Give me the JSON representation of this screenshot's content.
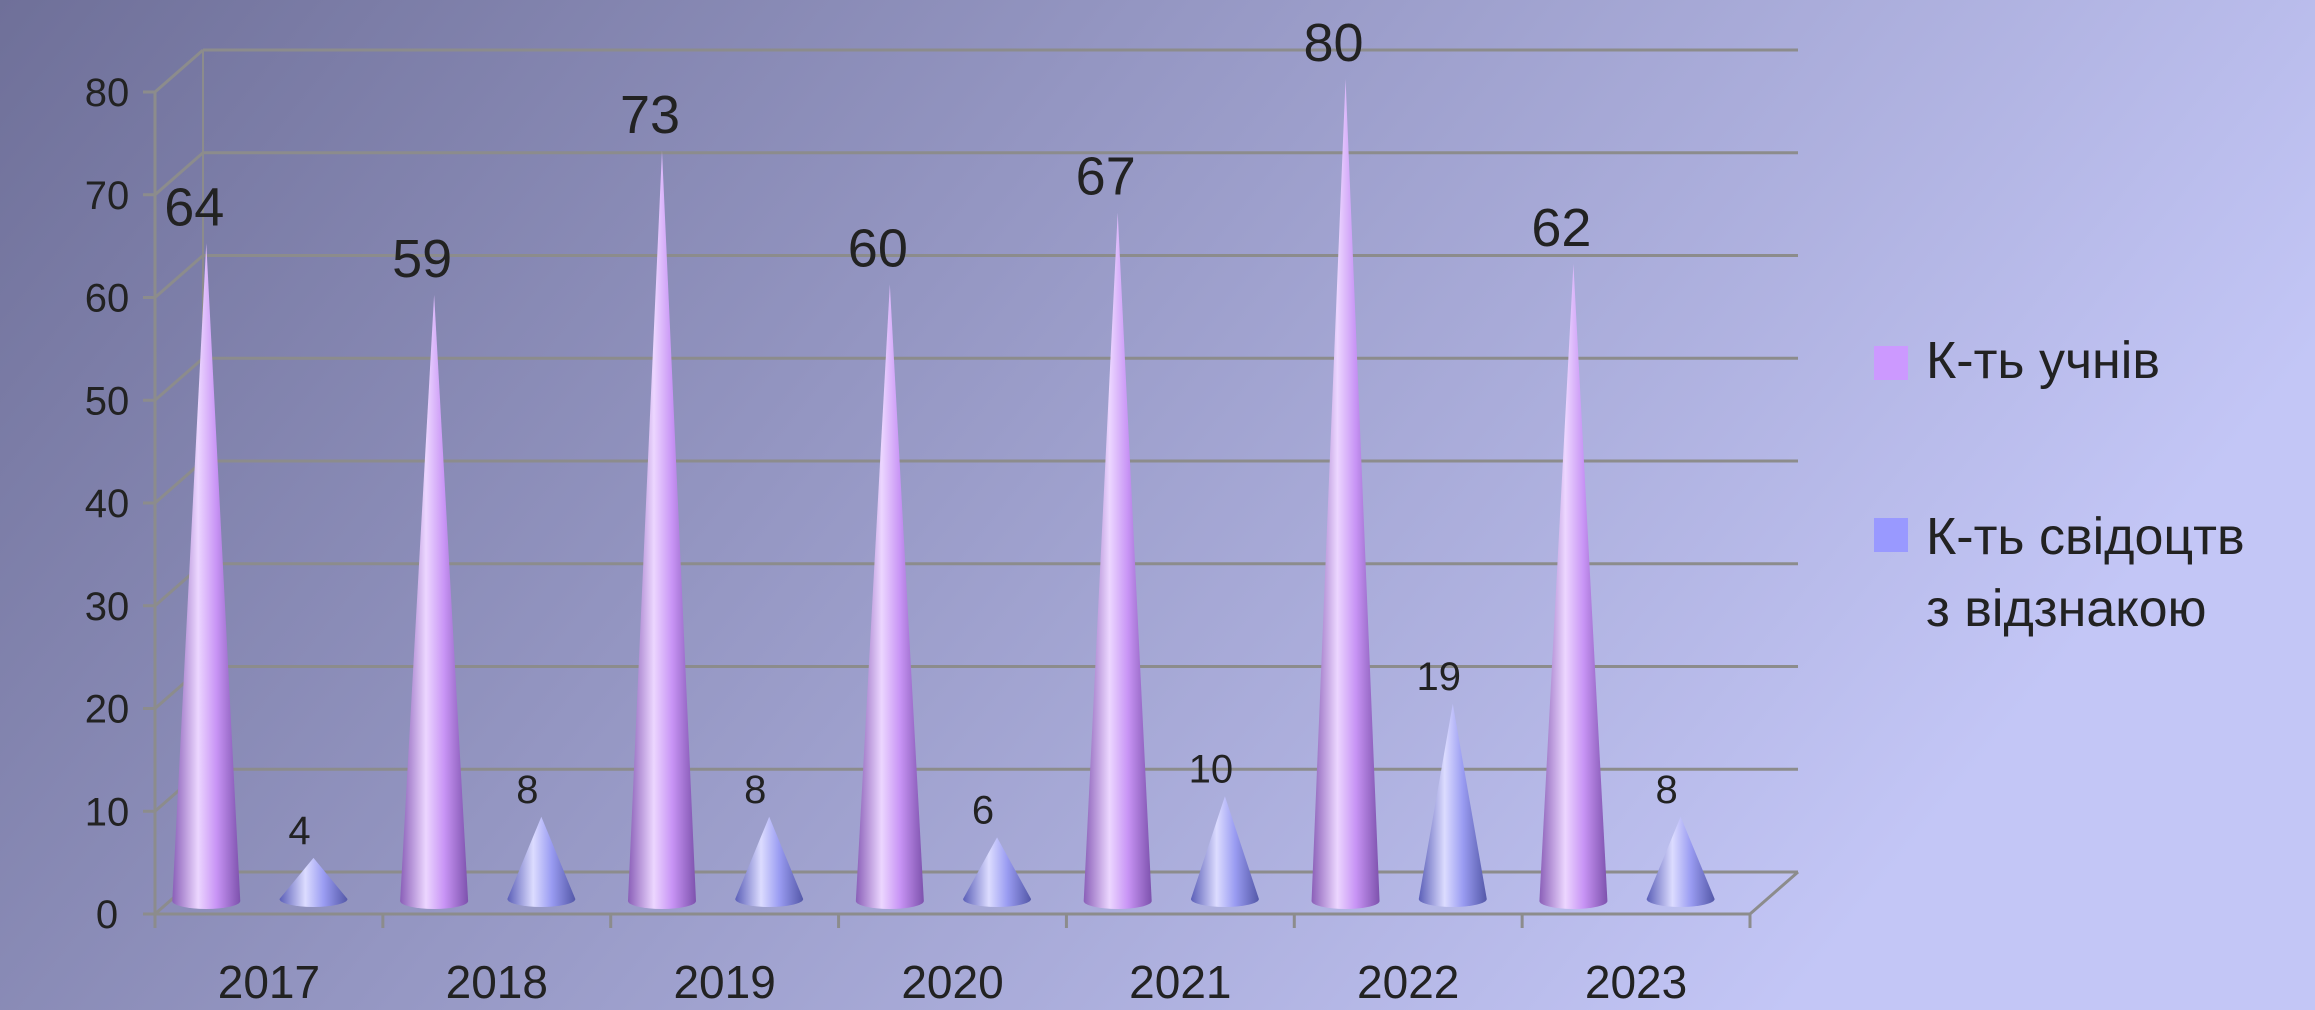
{
  "chart_data": {
    "type": "bar",
    "style": "3d-cone",
    "categories": [
      "2017",
      "2018",
      "2019",
      "2020",
      "2021",
      "2022",
      "2023"
    ],
    "series": [
      {
        "name": "К-ть учнів",
        "values": [
          64,
          59,
          73,
          60,
          67,
          80,
          62
        ],
        "color": "#cc99ff"
      },
      {
        "name": "К-ть свідоцтв з відзнакою",
        "name_lines": [
          "К-ть свідоцтв",
          "з відзнакою"
        ],
        "values": [
          4,
          8,
          8,
          6,
          10,
          19,
          8
        ],
        "color": "#9999ff"
      }
    ],
    "yticks": [
      "0",
      "10",
      "20",
      "30",
      "40",
      "50",
      "60",
      "70",
      "80"
    ],
    "ylim": [
      0,
      80
    ],
    "grid": true,
    "legend": "right",
    "data_labels": true
  },
  "colors": {
    "background_left": "#6f7099",
    "background_right": "#c3c6f6",
    "gridline": "#8c8c8c"
  }
}
